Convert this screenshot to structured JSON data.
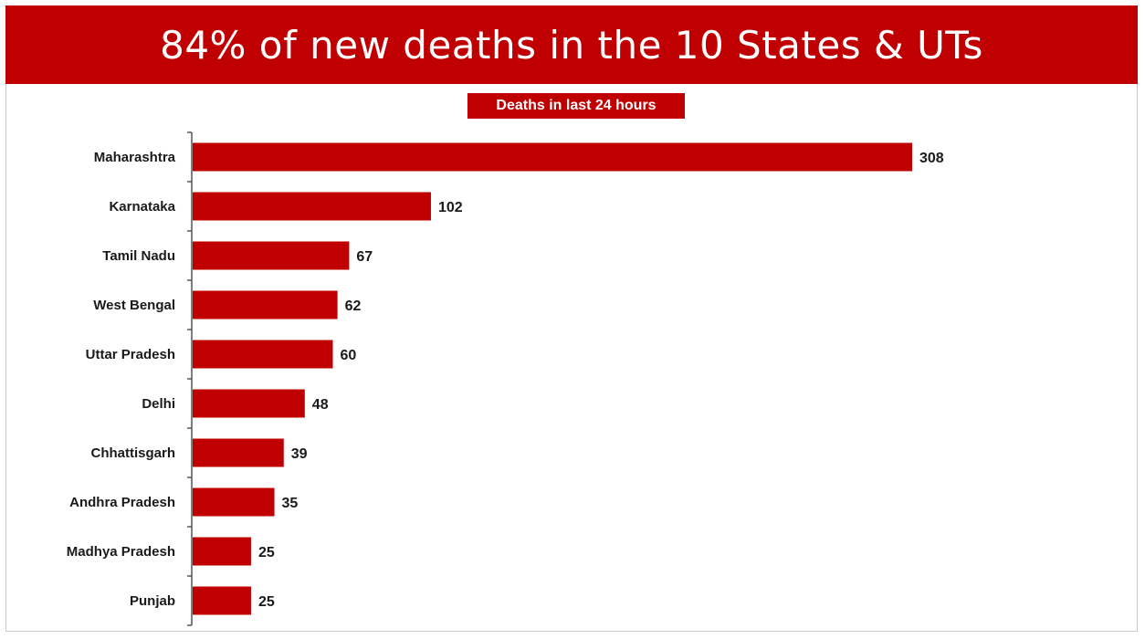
{
  "colors": {
    "accent": "#c00000",
    "axis": "#555555"
  },
  "header": {
    "title": "84% of new deaths in the 10 States & UTs"
  },
  "chart_data": {
    "type": "bar",
    "orientation": "horizontal",
    "title": "Deaths in last 24 hours",
    "categories": [
      "Maharashtra",
      "Karnataka",
      "Tamil Nadu",
      "West Bengal",
      "Uttar Pradesh",
      "Delhi",
      "Chhattisgarh",
      "Andhra Pradesh",
      "Madhya Pradesh",
      "Punjab"
    ],
    "values": [
      308,
      102,
      67,
      62,
      60,
      48,
      39,
      35,
      25,
      25
    ],
    "xlim": [
      0,
      308
    ],
    "grid": false,
    "legend": "none"
  }
}
